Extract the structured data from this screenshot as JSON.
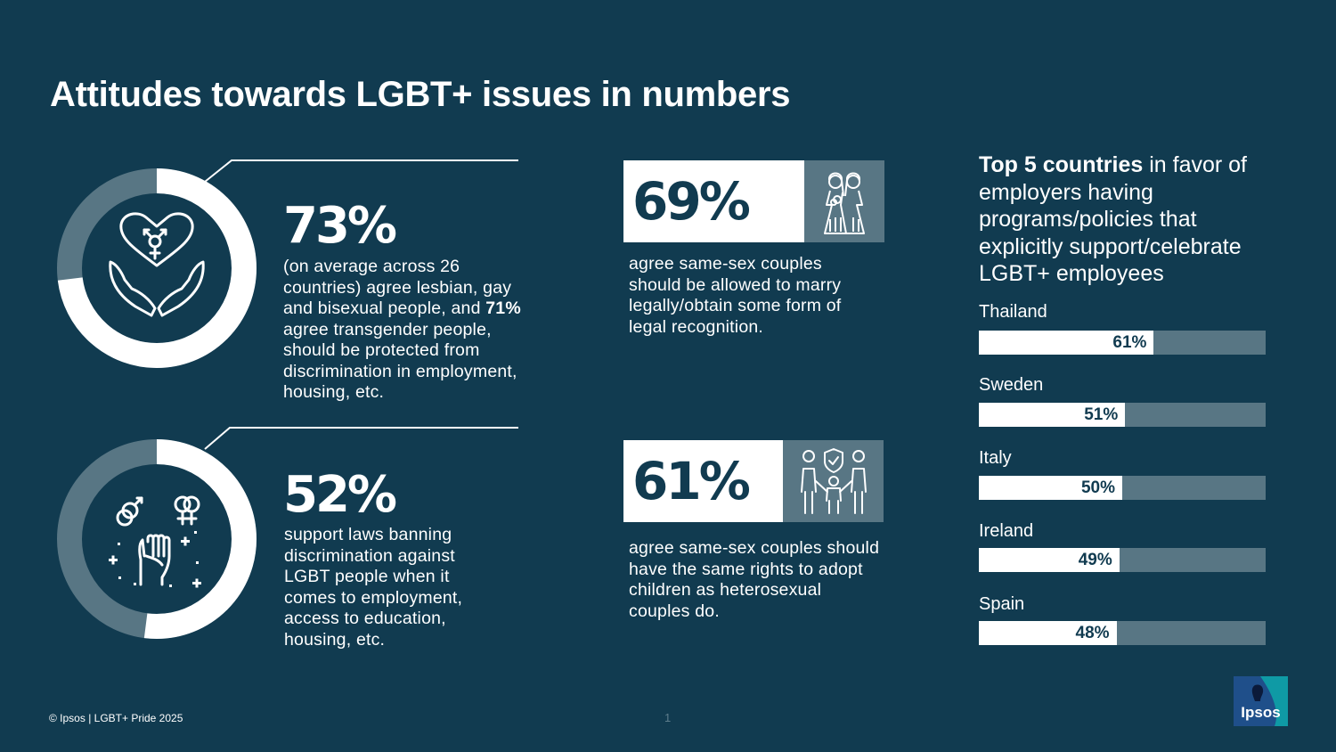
{
  "title": "Attitudes towards LGBT+ issues in numbers",
  "stats_left": [
    {
      "pct": "73%",
      "text_a": "(on average across 26 countries) agree lesbian, gay and bisexual people, and ",
      "text_bold": "71%",
      "text_b": " agree transgender people, should be protected from discrimination in employment, housing, etc.",
      "donut_fraction": 0.73,
      "icon": "heart-hands-gender-icon"
    },
    {
      "pct": "52%",
      "text": "support laws banning discrimination against LGBT people when it comes to employment, access to education, housing, etc.",
      "donut_fraction": 0.52,
      "icon": "raised-fist-gender-symbols-icon"
    }
  ],
  "stats_mid": [
    {
      "pct": "69%",
      "text": "agree same-sex couples should be allowed to marry legally/obtain some form of legal recognition.",
      "icon": "two-brides-icon"
    },
    {
      "pct": "61%",
      "text": "agree same-sex couples should have the same rights to adopt children as heterosexual couples do.",
      "icon": "family-shield-icon"
    }
  ],
  "top_countries": {
    "heading_bold": "Top 5 countries",
    "heading_rest": " in favor of employers having programs/policies that explicitly support/celebrate LGBT+ employees",
    "items": [
      {
        "country": "Thailand",
        "label": "61%",
        "value": 61
      },
      {
        "country": "Sweden",
        "label": "51%",
        "value": 51
      },
      {
        "country": "Italy",
        "label": "50%",
        "value": 50
      },
      {
        "country": "Ireland",
        "label": "49%",
        "value": 49
      },
      {
        "country": "Spain",
        "label": "48%",
        "value": 48
      }
    ]
  },
  "footer": {
    "copyright": "© Ipsos | LGBT+ Pride 2025",
    "page": "1"
  },
  "logo_text": "Ipsos",
  "colors": {
    "background": "#113b50",
    "accent_gray": "#587684",
    "white": "#ffffff",
    "logo_teal": "#0f9aa5"
  }
}
